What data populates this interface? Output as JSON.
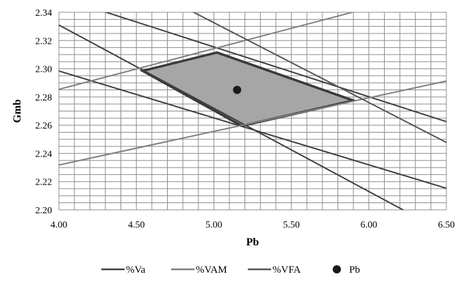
{
  "chart_data": {
    "type": "line",
    "xlabel": "Pb",
    "ylabel": "Gmb",
    "xlim": [
      4.0,
      6.5
    ],
    "ylim": [
      2.2,
      2.34
    ],
    "grid": true,
    "x_ticks": [
      "4.00",
      "4.50",
      "5.00",
      "5.50",
      "6.00",
      "6.50"
    ],
    "y_ticks": [
      "2.20",
      "2.22",
      "2.24",
      "2.26",
      "2.28",
      "2.30",
      "2.32",
      "2.34"
    ],
    "legend_position": "bottom",
    "series": [
      {
        "name": "%Va",
        "color": "#3f3f3f",
        "lines": [
          [
            [
              4.0,
              2.3508
            ],
            [
              6.5,
              2.2625
            ]
          ],
          [
            [
              4.0,
              2.2984
            ],
            [
              6.5,
              2.2153
            ]
          ],
          [
            [
              4.0,
              2.331
            ],
            [
              6.2288,
              2.1995
            ]
          ]
        ]
      },
      {
        "name": "%VAM",
        "color": "#7f7f7f",
        "lines": [
          [
            [
              4.0,
              2.2854
            ],
            [
              6.5,
              2.3575
            ]
          ],
          [
            [
              4.0,
              2.2318
            ],
            [
              6.5,
              2.2913
            ]
          ]
        ]
      },
      {
        "name": "%VFA",
        "color": "#555555",
        "lines": [
          [
            [
              4.0,
              2.3892
            ],
            [
              6.5,
              2.2478
            ]
          ]
        ]
      },
      {
        "name": "Pb",
        "type": "scatter",
        "color": "#1a1a1a",
        "points": [
          [
            5.15,
            2.285
          ]
        ]
      }
    ],
    "feasible_region": {
      "fill": "#a6a6a6",
      "stroke": "#3a3a3a",
      "vertices": [
        [
          4.54,
          2.2985
        ],
        [
          5.02,
          2.3115
        ],
        [
          5.9,
          2.2775
        ],
        [
          5.18,
          2.2595
        ]
      ]
    }
  }
}
